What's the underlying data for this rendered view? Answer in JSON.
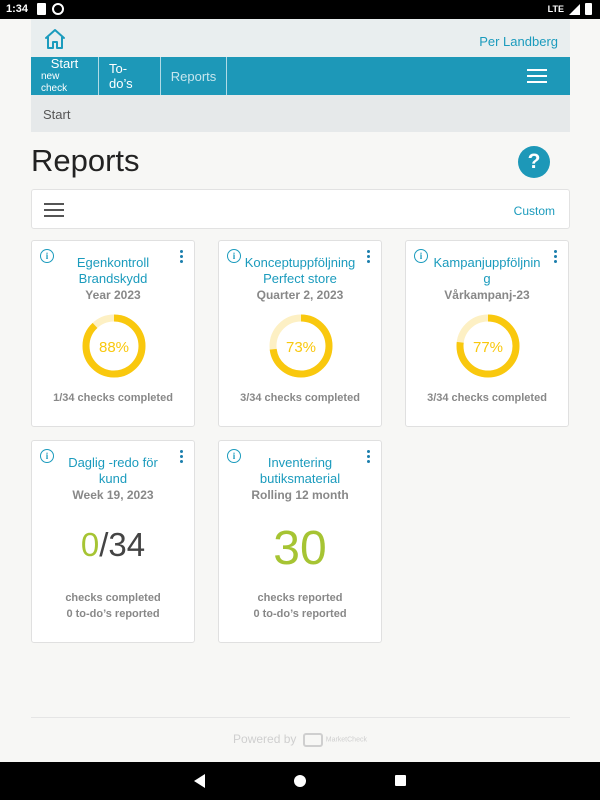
{
  "status_bar": {
    "time": "1:34",
    "network": "LTE"
  },
  "header": {
    "user_name": "Per Landberg"
  },
  "nav": {
    "start_line1": "Start",
    "start_line2": "new check",
    "todos": "To-do’s",
    "reports": "Reports"
  },
  "breadcrumb": "Start",
  "page": {
    "title": "Reports",
    "help": "?"
  },
  "filter": {
    "custom": "Custom"
  },
  "cards": [
    {
      "title": "Egenkontroll Brandskydd",
      "period": "Year 2023",
      "percent_label": "88%",
      "percent": 88,
      "status": "1/34 checks completed"
    },
    {
      "title": "Konceptuppföljning Perfect store",
      "period": "Quarter 2, 2023",
      "percent_label": "73%",
      "percent": 73,
      "status": "3/34 checks completed"
    },
    {
      "title": "Kampanjuppföljning",
      "period": "Vårkampanj-23",
      "percent_label": "77%",
      "percent": 77,
      "status": "3/34 checks completed"
    },
    {
      "title": "Daglig -redo för kund",
      "period": "Week 19, 2023",
      "done": "0",
      "slash": "/",
      "total": "34",
      "line1": "checks completed",
      "line2": "0 to-do’s reported"
    },
    {
      "title": "Inventering butiksmaterial",
      "period": "Rolling 12 month",
      "count": "30",
      "line1": "checks reported",
      "line2": "0 to-do’s reported"
    }
  ],
  "footer": {
    "powered_by": "Powered by",
    "brand": "MarketCheck"
  },
  "colors": {
    "accent": "#1d98b8",
    "donut": "#f9c80e",
    "donut_track": "#fdf0c4",
    "count_green": "#a6c433"
  }
}
